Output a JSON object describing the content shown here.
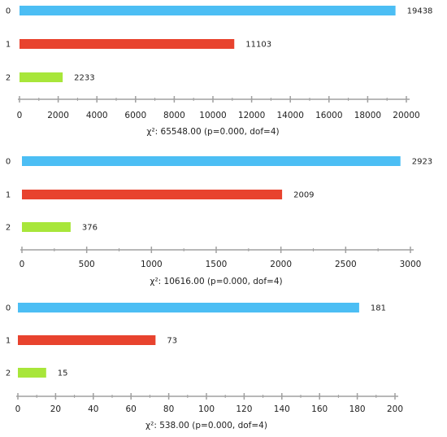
{
  "colors": {
    "bar_0": "#4cbef4",
    "bar_1": "#e8432e",
    "bar_2": "#a8e63a",
    "axis": "#a0a0a0",
    "text": "#222222"
  },
  "chart_data": [
    {
      "type": "bar",
      "orientation": "horizontal",
      "categories": [
        "0",
        "1",
        "2"
      ],
      "values": [
        19438,
        11103,
        2233
      ],
      "value_labels": [
        "19438",
        "11103",
        "2233"
      ],
      "xlim": [
        0,
        20000
      ],
      "xticks": [
        "0",
        "2000",
        "4000",
        "6000",
        "8000",
        "10000",
        "12000",
        "14000",
        "16000",
        "18000",
        "20000"
      ],
      "stat_label": "χ²: 65548.00 (p=0.000, dof=4)",
      "grid": false,
      "legend": "none"
    },
    {
      "type": "bar",
      "orientation": "horizontal",
      "categories": [
        "0",
        "1",
        "2"
      ],
      "values": [
        2923,
        2009,
        376
      ],
      "value_labels": [
        "2923",
        "2009",
        "376"
      ],
      "xlim": [
        0,
        3000
      ],
      "xticks": [
        "0",
        "500",
        "1000",
        "1500",
        "2000",
        "2500",
        "3000"
      ],
      "stat_label": "χ²: 10616.00 (p=0.000, dof=4)",
      "grid": false,
      "legend": "none"
    },
    {
      "type": "bar",
      "orientation": "horizontal",
      "categories": [
        "0",
        "1",
        "2"
      ],
      "values": [
        181,
        73,
        15
      ],
      "value_labels": [
        "181",
        "73",
        "15"
      ],
      "xlim": [
        0,
        200
      ],
      "xticks": [
        "0",
        "20",
        "40",
        "60",
        "80",
        "100",
        "120",
        "140",
        "160",
        "180",
        "200"
      ],
      "stat_label": "χ²: 538.00 (p=0.000, dof=4)",
      "grid": false,
      "legend": "none"
    }
  ]
}
